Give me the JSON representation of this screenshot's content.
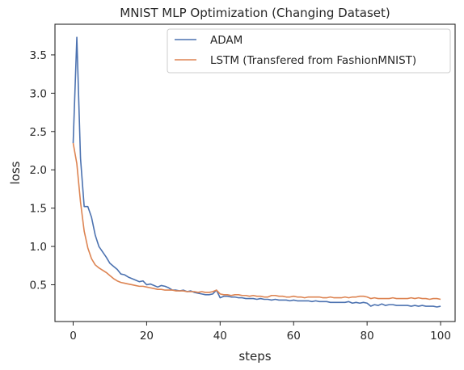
{
  "chart_data": {
    "type": "line",
    "title": "MNIST MLP Optimization (Changing Dataset)",
    "xlabel": "steps",
    "ylabel": "loss",
    "xlim": [
      -4.95,
      103.95
    ],
    "ylim": [
      0.02,
      3.9
    ],
    "xticks": [
      0,
      20,
      40,
      60,
      80,
      100
    ],
    "xtick_labels": [
      "0",
      "20",
      "40",
      "60",
      "80",
      "100"
    ],
    "yticks": [
      0.5,
      1.0,
      1.5,
      2.0,
      2.5,
      3.0,
      3.5
    ],
    "ytick_labels": [
      "0.5",
      "1.0",
      "1.5",
      "2.0",
      "2.5",
      "3.0",
      "3.5"
    ],
    "legend_position": "top-right",
    "grid": false,
    "series": [
      {
        "name": "ADAM",
        "color": "#4c72b0",
        "y": [
          2.35,
          3.73,
          2.15,
          1.52,
          1.52,
          1.38,
          1.15,
          1.0,
          0.93,
          0.86,
          0.78,
          0.74,
          0.7,
          0.64,
          0.63,
          0.6,
          0.58,
          0.56,
          0.54,
          0.55,
          0.5,
          0.51,
          0.49,
          0.47,
          0.49,
          0.48,
          0.46,
          0.43,
          0.43,
          0.42,
          0.43,
          0.41,
          0.42,
          0.4,
          0.39,
          0.38,
          0.37,
          0.37,
          0.38,
          0.43,
          0.33,
          0.35,
          0.35,
          0.34,
          0.34,
          0.33,
          0.33,
          0.32,
          0.32,
          0.32,
          0.31,
          0.32,
          0.31,
          0.31,
          0.3,
          0.31,
          0.3,
          0.3,
          0.3,
          0.29,
          0.3,
          0.29,
          0.29,
          0.29,
          0.29,
          0.28,
          0.29,
          0.28,
          0.28,
          0.28,
          0.27,
          0.27,
          0.27,
          0.27,
          0.27,
          0.28,
          0.26,
          0.27,
          0.26,
          0.27,
          0.26,
          0.22,
          0.24,
          0.23,
          0.25,
          0.23,
          0.24,
          0.24,
          0.23,
          0.23,
          0.23,
          0.23,
          0.22,
          0.23,
          0.22,
          0.23,
          0.22,
          0.22,
          0.22,
          0.21,
          0.22
        ]
      },
      {
        "name": "LSTM (Transfered from FashionMNIST)",
        "color": "#dd8452",
        "y": [
          2.35,
          2.08,
          1.58,
          1.2,
          0.98,
          0.84,
          0.76,
          0.72,
          0.69,
          0.66,
          0.62,
          0.58,
          0.55,
          0.53,
          0.52,
          0.51,
          0.5,
          0.49,
          0.48,
          0.48,
          0.47,
          0.46,
          0.45,
          0.44,
          0.44,
          0.43,
          0.43,
          0.43,
          0.42,
          0.42,
          0.42,
          0.41,
          0.41,
          0.41,
          0.4,
          0.41,
          0.4,
          0.4,
          0.41,
          0.43,
          0.38,
          0.37,
          0.37,
          0.36,
          0.37,
          0.37,
          0.36,
          0.36,
          0.35,
          0.36,
          0.35,
          0.35,
          0.34,
          0.34,
          0.36,
          0.36,
          0.35,
          0.35,
          0.34,
          0.34,
          0.35,
          0.34,
          0.34,
          0.33,
          0.34,
          0.34,
          0.34,
          0.34,
          0.33,
          0.33,
          0.34,
          0.33,
          0.33,
          0.33,
          0.34,
          0.33,
          0.34,
          0.34,
          0.35,
          0.35,
          0.34,
          0.32,
          0.33,
          0.32,
          0.32,
          0.32,
          0.32,
          0.33,
          0.32,
          0.32,
          0.32,
          0.32,
          0.33,
          0.32,
          0.33,
          0.32,
          0.32,
          0.31,
          0.32,
          0.32,
          0.31
        ]
      }
    ]
  }
}
